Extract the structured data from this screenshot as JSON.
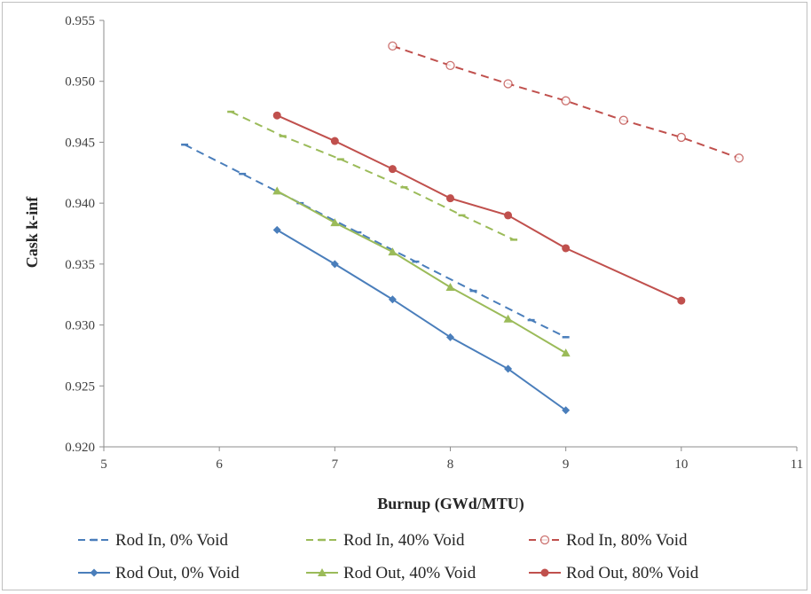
{
  "chart_data": {
    "type": "line",
    "title": "",
    "xlabel": "Burnup (GWd/MTU)",
    "ylabel": "Cask k-inf",
    "xlim": [
      5,
      11
    ],
    "ylim": [
      0.92,
      0.955
    ],
    "x_ticks": [
      "5",
      "6",
      "7",
      "8",
      "9",
      "10",
      "11"
    ],
    "y_ticks": [
      "0.920",
      "0.925",
      "0.930",
      "0.935",
      "0.940",
      "0.945",
      "0.950",
      "0.955"
    ],
    "grid": false,
    "legend_position": "bottom",
    "series": [
      {
        "name": "Rod In, 0% Void",
        "color": "#4a7ebb",
        "dashed": true,
        "marker": "dash",
        "x": [
          5.7,
          6.2,
          6.7,
          7.2,
          7.7,
          8.2,
          8.7,
          9.0
        ],
        "y": [
          0.9448,
          0.9424,
          0.94,
          0.9376,
          0.9352,
          0.9328,
          0.9304,
          0.929
        ]
      },
      {
        "name": "Rod In, 40% Void",
        "color": "#9bbb59",
        "dashed": true,
        "marker": "dash",
        "x": [
          6.1,
          6.55,
          7.05,
          7.6,
          8.1,
          8.55
        ],
        "y": [
          0.9475,
          0.9455,
          0.9436,
          0.9413,
          0.939,
          0.937
        ]
      },
      {
        "name": "Rod In, 80% Void",
        "color": "#c0504d",
        "dashed": true,
        "marker": "ring",
        "x": [
          7.5,
          8.0,
          8.5,
          9.0,
          9.5,
          10.0,
          10.5
        ],
        "y": [
          0.9529,
          0.9513,
          0.9498,
          0.9484,
          0.9468,
          0.9454,
          0.9437
        ]
      },
      {
        "name": "Rod Out, 0% Void",
        "color": "#4a7ebb",
        "dashed": false,
        "marker": "diamond",
        "x": [
          6.5,
          7.0,
          7.5,
          8.0,
          8.5,
          9.0
        ],
        "y": [
          0.9378,
          0.935,
          0.9321,
          0.929,
          0.9264,
          0.923
        ]
      },
      {
        "name": "Rod Out, 40% Void",
        "color": "#9bbb59",
        "dashed": false,
        "marker": "triangle",
        "x": [
          6.5,
          7.0,
          7.5,
          8.0,
          8.5,
          9.0
        ],
        "y": [
          0.941,
          0.9384,
          0.936,
          0.9331,
          0.9305,
          0.9277
        ]
      },
      {
        "name": "Rod Out, 80% Void",
        "color": "#c0504d",
        "dashed": false,
        "marker": "circle",
        "x": [
          6.5,
          7.0,
          7.5,
          8.0,
          8.5,
          9.0,
          10.0
        ],
        "y": [
          0.9472,
          0.9451,
          0.9428,
          0.9404,
          0.939,
          0.9363,
          0.932
        ]
      }
    ]
  }
}
